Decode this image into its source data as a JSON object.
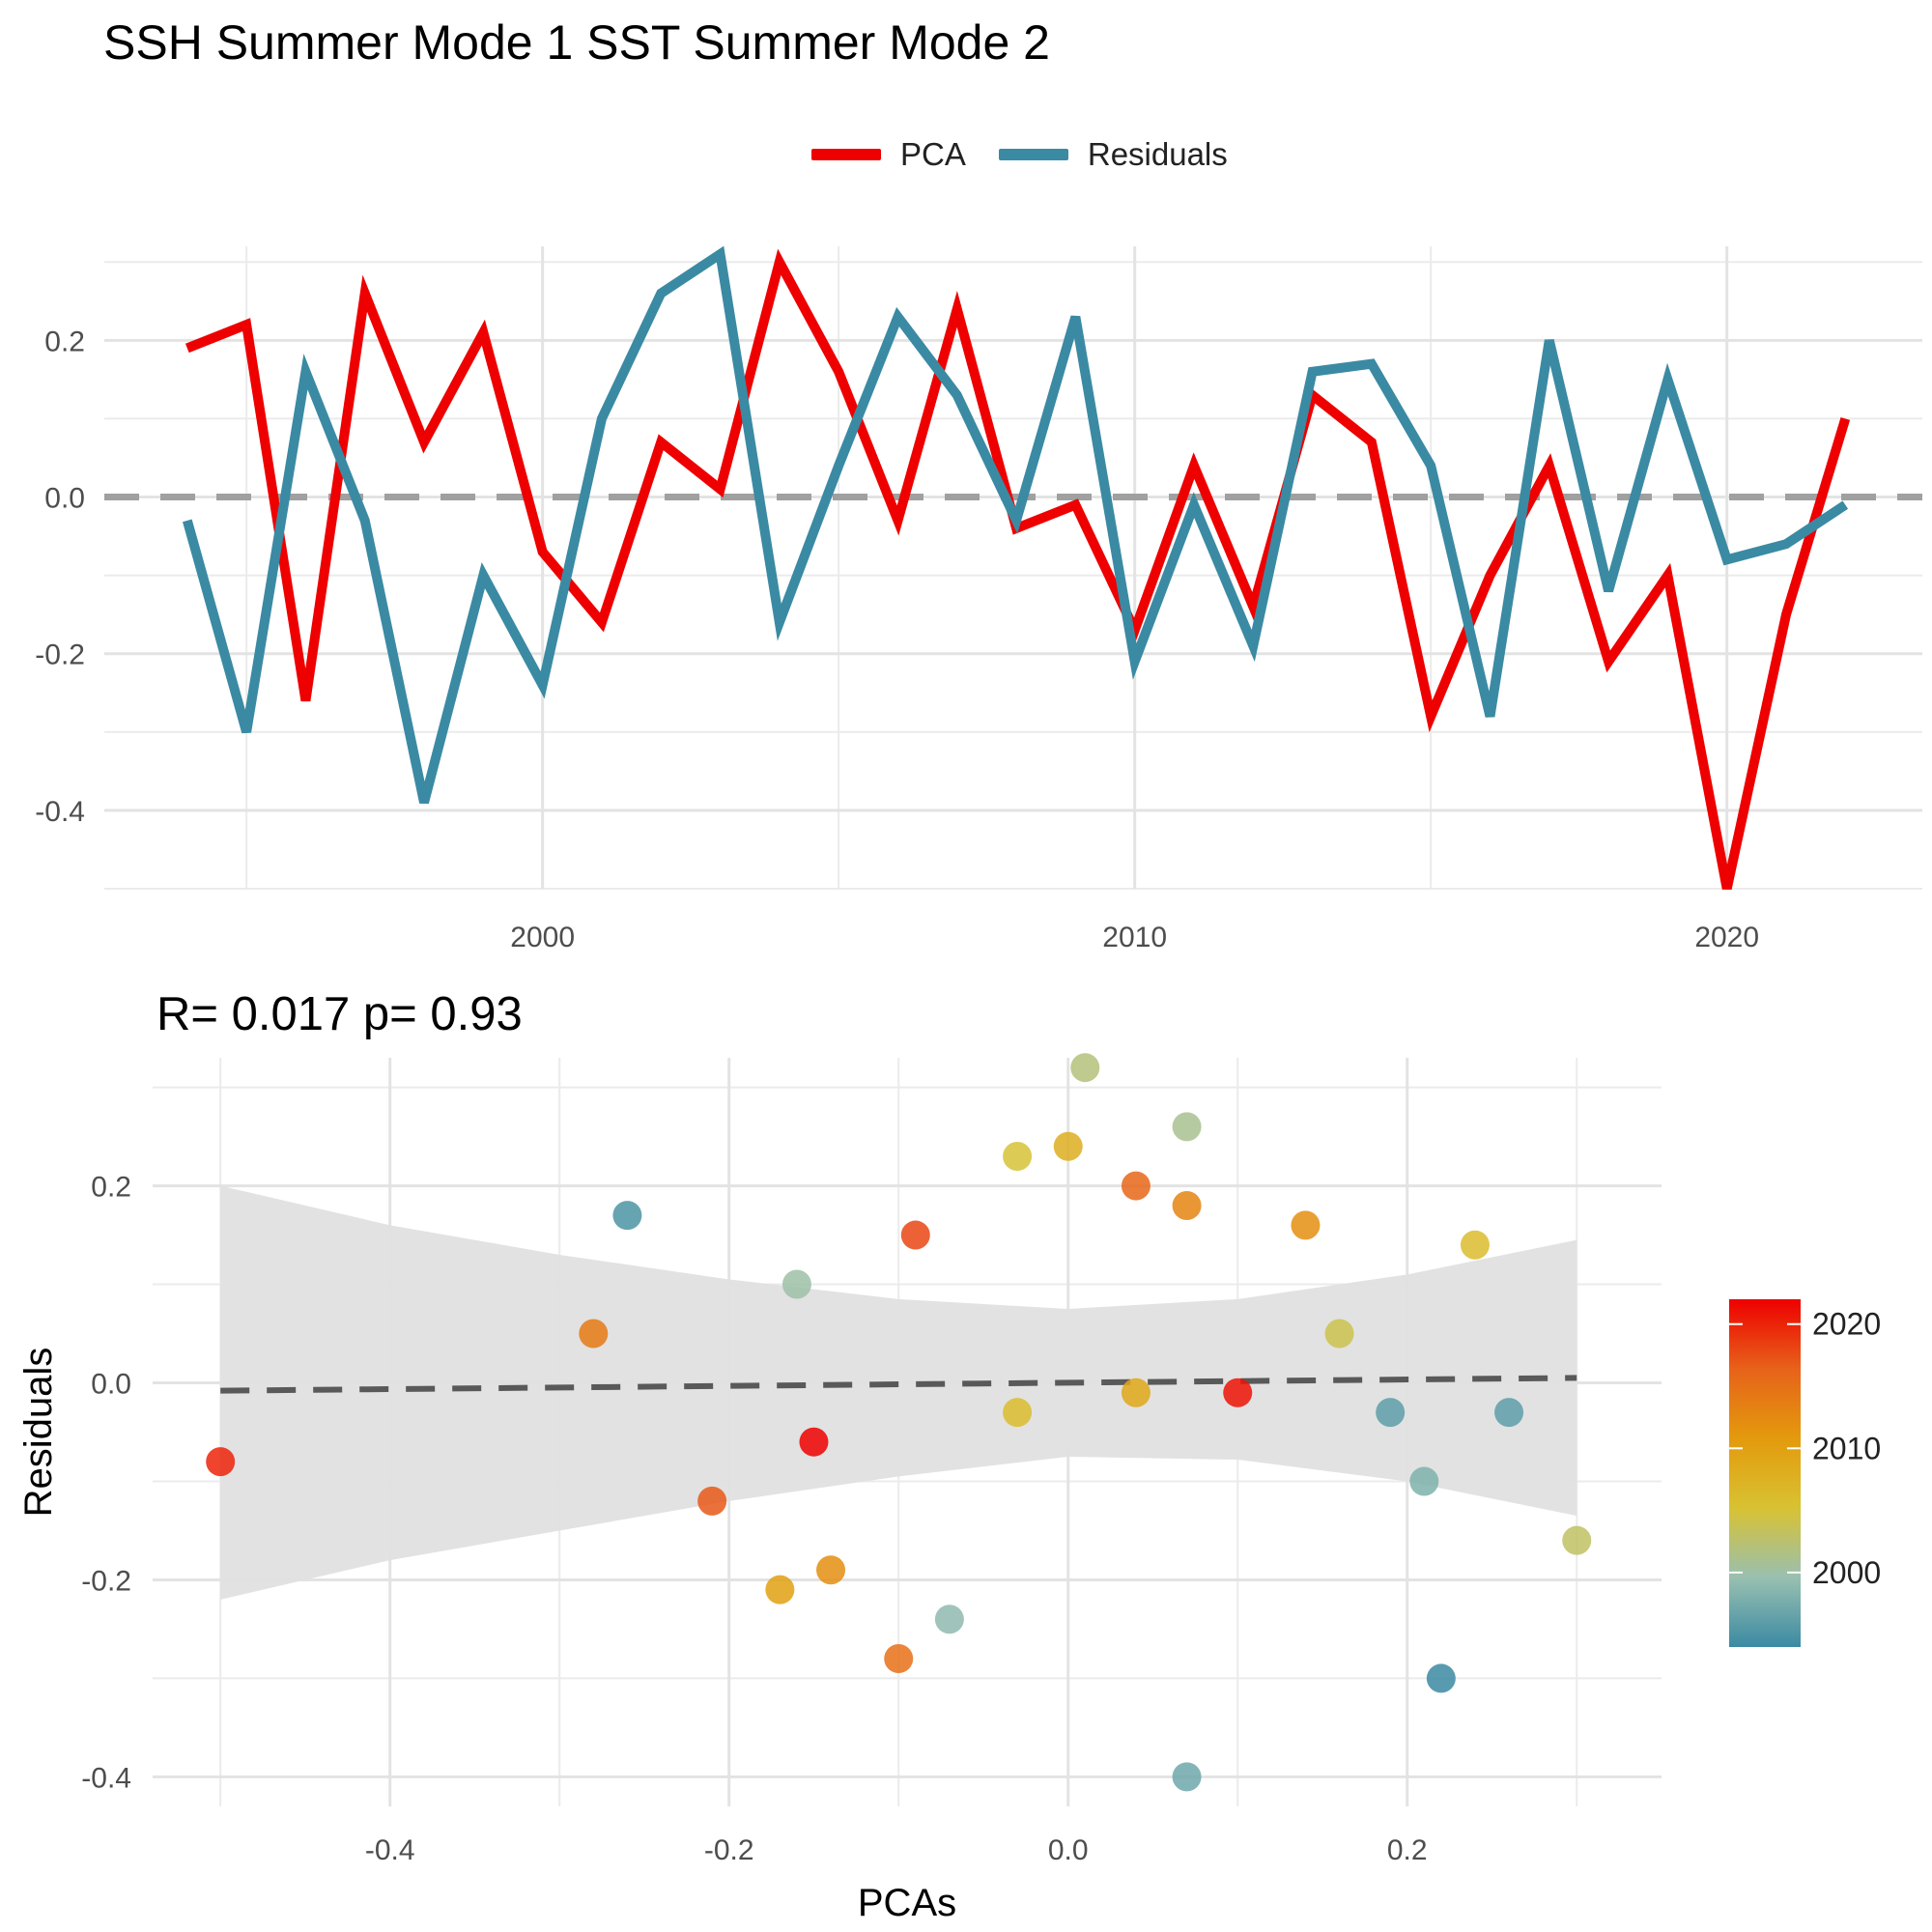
{
  "figure": {
    "title": "SSH Summer Mode 1 SST Summer Mode 2"
  },
  "chart_data": [
    {
      "type": "line",
      "legend": {
        "position": "top",
        "entries": [
          "PCA",
          "Residuals"
        ]
      },
      "x": [
        1994,
        1995,
        1996,
        1997,
        1998,
        1999,
        2000,
        2001,
        2002,
        2003,
        2004,
        2005,
        2006,
        2007,
        2008,
        2009,
        2010,
        2011,
        2012,
        2013,
        2014,
        2015,
        2016,
        2017,
        2018,
        2019,
        2020,
        2021,
        2022,
        2023
      ],
      "series": [
        {
          "name": "PCA",
          "color": "#EE0000",
          "values": [
            0.19,
            0.22,
            -0.26,
            0.26,
            0.07,
            0.21,
            -0.07,
            -0.16,
            0.07,
            0.01,
            0.3,
            0.16,
            -0.03,
            0.24,
            -0.04,
            -0.01,
            -0.17,
            0.04,
            -0.14,
            0.13,
            0.07,
            -0.28,
            -0.1,
            0.04,
            -0.21,
            -0.1,
            -0.5,
            -0.15,
            0.1,
            null
          ]
        },
        {
          "name": "Residuals",
          "color": "#3B8AA3",
          "values": [
            -0.03,
            -0.3,
            0.16,
            -0.03,
            -0.39,
            -0.1,
            -0.24,
            0.1,
            0.26,
            0.31,
            -0.16,
            0.04,
            0.23,
            0.13,
            -0.03,
            0.23,
            -0.21,
            -0.01,
            -0.19,
            0.16,
            0.17,
            0.04,
            -0.28,
            0.2,
            -0.12,
            0.15,
            -0.08,
            -0.06,
            -0.01,
            null
          ]
        }
      ],
      "reference_line": {
        "y": 0,
        "style": "dashed",
        "color": "#A0A0A0"
      },
      "xticks": [
        2000,
        2010,
        2020
      ],
      "xtick_labels": [
        "2000",
        "2010",
        "2020"
      ],
      "yticks": [
        -0.4,
        -0.2,
        0.0,
        0.2
      ],
      "ytick_labels": [
        "-0.4",
        "-0.2",
        "0.0",
        "0.2"
      ],
      "xlim": [
        1992.6,
        2023.3
      ],
      "ylim": [
        -0.5,
        0.32
      ],
      "grid": true
    },
    {
      "type": "scatter",
      "subtitle": "R= 0.017  p= 0.93",
      "xlabel": "PCAs",
      "ylabel": "Residuals",
      "xticks": [
        -0.4,
        -0.2,
        0.0,
        0.2
      ],
      "xtick_labels": [
        "-0.4",
        "-0.2",
        "0.0",
        "0.2"
      ],
      "yticks": [
        -0.4,
        -0.2,
        0.0,
        0.2
      ],
      "ytick_labels": [
        "-0.4",
        "-0.2",
        "0.0",
        "0.2"
      ],
      "xlim": [
        -0.54,
        0.35
      ],
      "ylim": [
        -0.43,
        0.33
      ],
      "grid": true,
      "colorbar": {
        "title": "",
        "ticks": [
          2000,
          2010,
          2020
        ],
        "tick_labels": [
          "2000",
          "2010",
          "2020"
        ],
        "range": [
          1994,
          2022
        ],
        "colors": [
          "#3B8AA3",
          "#99C0B0",
          "#D8C232",
          "#E39A0D",
          "#E7621A",
          "#EE0000"
        ]
      },
      "regression": {
        "line": [
          [
            -0.5,
            -0.008
          ],
          [
            0.3,
            0.005
          ]
        ],
        "style": "dashed",
        "line_color": "#595959",
        "band_color": "#E0E0E0",
        "band": {
          "x": [
            -0.5,
            -0.4,
            -0.3,
            -0.2,
            -0.1,
            0.0,
            0.1,
            0.2,
            0.3
          ],
          "upper": [
            0.2,
            0.16,
            0.13,
            0.105,
            0.085,
            0.075,
            0.085,
            0.11,
            0.145
          ],
          "lower": [
            -0.22,
            -0.18,
            -0.15,
            -0.12,
            -0.095,
            -0.075,
            -0.078,
            -0.1,
            -0.135
          ]
        }
      },
      "points": [
        {
          "x": 0.22,
          "y": -0.3,
          "year": 1994
        },
        {
          "x": -0.26,
          "y": 0.17,
          "year": 1995
        },
        {
          "x": 0.19,
          "y": -0.03,
          "year": 1996
        },
        {
          "x": 0.26,
          "y": -0.03,
          "year": 1996
        },
        {
          "x": 0.07,
          "y": -0.4,
          "year": 1997
        },
        {
          "x": 0.21,
          "y": -0.1,
          "year": 1998
        },
        {
          "x": -0.07,
          "y": -0.24,
          "year": 1999
        },
        {
          "x": -0.16,
          "y": 0.1,
          "year": 2000
        },
        {
          "x": 0.07,
          "y": 0.26,
          "year": 2001
        },
        {
          "x": 0.01,
          "y": 0.32,
          "year": 2002
        },
        {
          "x": 0.3,
          "y": -0.16,
          "year": 2003
        },
        {
          "x": 0.16,
          "y": 0.05,
          "year": 2004
        },
        {
          "x": -0.03,
          "y": 0.23,
          "year": 2005
        },
        {
          "x": 0.24,
          "y": 0.14,
          "year": 2006
        },
        {
          "x": -0.03,
          "y": -0.03,
          "year": 2006
        },
        {
          "x": 0.0,
          "y": 0.24,
          "year": 2008
        },
        {
          "x": 0.04,
          "y": -0.01,
          "year": 2009
        },
        {
          "x": -0.17,
          "y": -0.21,
          "year": 2010
        },
        {
          "x": 0.14,
          "y": 0.16,
          "year": 2012
        },
        {
          "x": 0.07,
          "y": 0.18,
          "year": 2013
        },
        {
          "x": -0.28,
          "y": 0.05,
          "year": 2014
        },
        {
          "x": -0.14,
          "y": -0.19,
          "year": 2012
        },
        {
          "x": -0.1,
          "y": -0.28,
          "year": 2015
        },
        {
          "x": 0.04,
          "y": 0.2,
          "year": 2016
        },
        {
          "x": -0.21,
          "y": -0.12,
          "year": 2017
        },
        {
          "x": -0.09,
          "y": 0.15,
          "year": 2018
        },
        {
          "x": -0.15,
          "y": -0.06,
          "year": 2022
        },
        {
          "x": 0.1,
          "y": -0.01,
          "year": 2021
        },
        {
          "x": -0.5,
          "y": -0.08,
          "year": 2020
        }
      ]
    }
  ]
}
